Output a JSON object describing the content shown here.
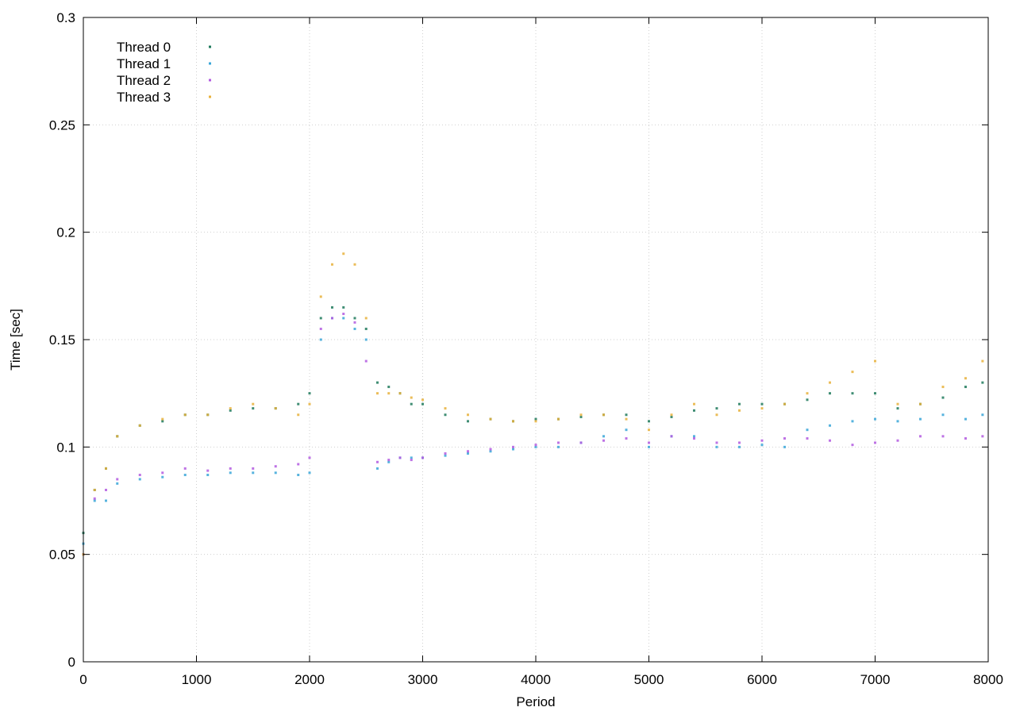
{
  "chart_data": {
    "type": "scatter",
    "xlabel": "Period",
    "ylabel": "Time [sec]",
    "xlim": [
      0,
      8000
    ],
    "ylim": [
      0,
      0.3
    ],
    "x_ticks": [
      "0",
      "1000",
      "2000",
      "3000",
      "4000",
      "5000",
      "6000",
      "7000",
      "8000"
    ],
    "y_ticks": [
      "0",
      "0.05",
      "0.1",
      "0.15",
      "0.2",
      "0.25",
      "0.3"
    ],
    "grid": true,
    "legend_position": "top-left",
    "series": [
      {
        "name": "Thread 0",
        "color": "#1f7a5c",
        "x": [
          0,
          100,
          200,
          300,
          500,
          700,
          900,
          1100,
          1300,
          1500,
          1700,
          1900,
          2000,
          2100,
          2200,
          2300,
          2400,
          2500,
          2600,
          2700,
          2800,
          2900,
          3000,
          3200,
          3400,
          3600,
          3800,
          4000,
          4200,
          4400,
          4600,
          4800,
          5000,
          5200,
          5400,
          5600,
          5800,
          6000,
          6200,
          6400,
          6600,
          6800,
          7000,
          7200,
          7400,
          7600,
          7800,
          7950
        ],
        "y": [
          0.06,
          0.08,
          0.09,
          0.105,
          0.11,
          0.112,
          0.115,
          0.115,
          0.117,
          0.118,
          0.118,
          0.12,
          0.125,
          0.16,
          0.165,
          0.165,
          0.16,
          0.155,
          0.13,
          0.128,
          0.125,
          0.12,
          0.12,
          0.115,
          0.112,
          0.113,
          0.112,
          0.113,
          0.113,
          0.114,
          0.115,
          0.115,
          0.112,
          0.114,
          0.117,
          0.118,
          0.12,
          0.12,
          0.12,
          0.122,
          0.125,
          0.125,
          0.125,
          0.118,
          0.12,
          0.123,
          0.128,
          0.13
        ]
      },
      {
        "name": "Thread 1",
        "color": "#3aa6d8",
        "x": [
          0,
          100,
          200,
          300,
          500,
          700,
          900,
          1100,
          1300,
          1500,
          1700,
          1900,
          2000,
          2100,
          2200,
          2300,
          2400,
          2500,
          2600,
          2700,
          2800,
          2900,
          3000,
          3200,
          3400,
          3600,
          3800,
          4000,
          4200,
          4400,
          4600,
          4800,
          5000,
          5200,
          5400,
          5600,
          5800,
          6000,
          6200,
          6400,
          6600,
          6800,
          7000,
          7200,
          7400,
          7600,
          7800,
          7950
        ],
        "y": [
          0.055,
          0.075,
          0.075,
          0.083,
          0.085,
          0.086,
          0.087,
          0.087,
          0.088,
          0.088,
          0.088,
          0.087,
          0.088,
          0.15,
          0.16,
          0.16,
          0.155,
          0.15,
          0.09,
          0.093,
          0.095,
          0.095,
          0.095,
          0.096,
          0.097,
          0.098,
          0.099,
          0.1,
          0.1,
          0.102,
          0.105,
          0.108,
          0.1,
          0.105,
          0.105,
          0.1,
          0.1,
          0.101,
          0.1,
          0.108,
          0.11,
          0.112,
          0.113,
          0.112,
          0.113,
          0.115,
          0.113,
          0.115
        ]
      },
      {
        "name": "Thread 2",
        "color": "#b35be0",
        "x": [
          0,
          100,
          200,
          300,
          500,
          700,
          900,
          1100,
          1300,
          1500,
          1700,
          1900,
          2000,
          2100,
          2200,
          2300,
          2400,
          2500,
          2600,
          2700,
          2800,
          2900,
          3000,
          3200,
          3400,
          3600,
          3800,
          4000,
          4200,
          4400,
          4600,
          4800,
          5000,
          5200,
          5400,
          5600,
          5800,
          6000,
          6200,
          6400,
          6600,
          6800,
          7000,
          7200,
          7400,
          7600,
          7800,
          7950
        ],
        "y": [
          0.05,
          0.076,
          0.08,
          0.085,
          0.087,
          0.088,
          0.09,
          0.089,
          0.09,
          0.09,
          0.091,
          0.092,
          0.095,
          0.155,
          0.16,
          0.162,
          0.158,
          0.14,
          0.093,
          0.094,
          0.095,
          0.094,
          0.095,
          0.097,
          0.098,
          0.099,
          0.1,
          0.101,
          0.102,
          0.102,
          0.103,
          0.104,
          0.102,
          0.105,
          0.104,
          0.102,
          0.102,
          0.103,
          0.104,
          0.104,
          0.103,
          0.101,
          0.102,
          0.103,
          0.105,
          0.105,
          0.104,
          0.105
        ]
      },
      {
        "name": "Thread 3",
        "color": "#e8b23c",
        "x": [
          0,
          100,
          200,
          300,
          500,
          700,
          900,
          1100,
          1300,
          1500,
          1700,
          1900,
          2000,
          2100,
          2200,
          2300,
          2400,
          2500,
          2600,
          2700,
          2800,
          2900,
          3000,
          3200,
          3400,
          3600,
          3800,
          4000,
          4200,
          4400,
          4600,
          4800,
          5000,
          5200,
          5400,
          5600,
          5800,
          6000,
          6200,
          6400,
          6600,
          6800,
          7000,
          7200,
          7400,
          7600,
          7800,
          7950
        ],
        "y": [
          0.05,
          0.08,
          0.09,
          0.105,
          0.11,
          0.113,
          0.115,
          0.115,
          0.118,
          0.12,
          0.118,
          0.115,
          0.12,
          0.17,
          0.185,
          0.19,
          0.185,
          0.16,
          0.125,
          0.125,
          0.125,
          0.123,
          0.122,
          0.118,
          0.115,
          0.113,
          0.112,
          0.112,
          0.113,
          0.115,
          0.115,
          0.113,
          0.108,
          0.115,
          0.12,
          0.115,
          0.117,
          0.118,
          0.12,
          0.125,
          0.13,
          0.135,
          0.14,
          0.12,
          0.12,
          0.128,
          0.132,
          0.14
        ]
      }
    ]
  }
}
